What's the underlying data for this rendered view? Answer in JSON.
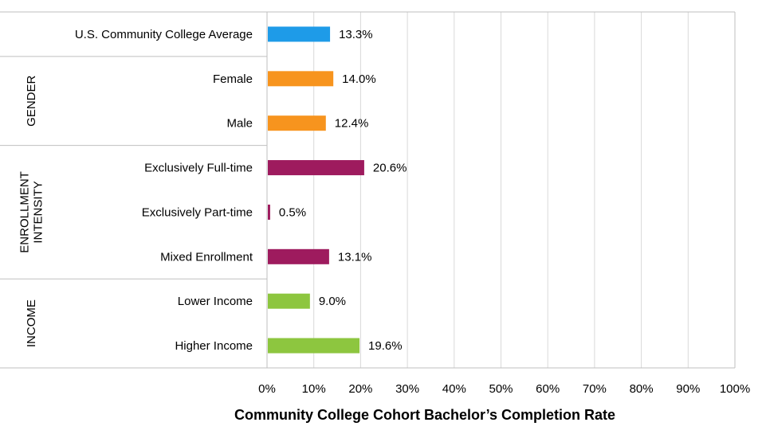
{
  "chart_data": {
    "type": "bar",
    "orientation": "horizontal",
    "xlabel": "Community College Cohort Bachelor’s Completion Rate",
    "xlim": [
      0,
      100
    ],
    "x_ticks": [
      "0%",
      "10%",
      "20%",
      "30%",
      "40%",
      "50%",
      "60%",
      "70%",
      "80%",
      "90%",
      "100%"
    ],
    "grid": "vertical gridlines on",
    "categories": [
      {
        "label": "U.S. Community College Average",
        "value": 13.3,
        "value_label": "13.3%",
        "group": "",
        "color": "#1E9BE8"
      },
      {
        "label": "Female",
        "value": 14.0,
        "value_label": "14.0%",
        "group": "GENDER",
        "color": "#F7941E"
      },
      {
        "label": "Male",
        "value": 12.4,
        "value_label": "12.4%",
        "group": "GENDER",
        "color": "#F7941E"
      },
      {
        "label": "Exclusively Full-time",
        "value": 20.6,
        "value_label": "20.6%",
        "group": "ENROLLMENT INTENSITY",
        "color": "#9E1B5E"
      },
      {
        "label": "Exclusively Part-time",
        "value": 0.5,
        "value_label": "0.5%",
        "group": "ENROLLMENT INTENSITY",
        "color": "#9E1B5E"
      },
      {
        "label": "Mixed Enrollment",
        "value": 13.1,
        "value_label": "13.1%",
        "group": "ENROLLMENT INTENSITY",
        "color": "#9E1B5E"
      },
      {
        "label": "Lower Income",
        "value": 9.0,
        "value_label": "9.0%",
        "group": "INCOME",
        "color": "#8DC63F"
      },
      {
        "label": "Higher Income",
        "value": 19.6,
        "value_label": "19.6%",
        "group": "INCOME",
        "color": "#8DC63F"
      }
    ],
    "groups": [
      {
        "name": "GENDER",
        "lines": [
          "GENDER"
        ]
      },
      {
        "name": "ENROLLMENT INTENSITY",
        "lines": [
          "ENROLLMENT",
          "INTENSITY"
        ]
      },
      {
        "name": "INCOME",
        "lines": [
          "INCOME"
        ]
      }
    ]
  }
}
